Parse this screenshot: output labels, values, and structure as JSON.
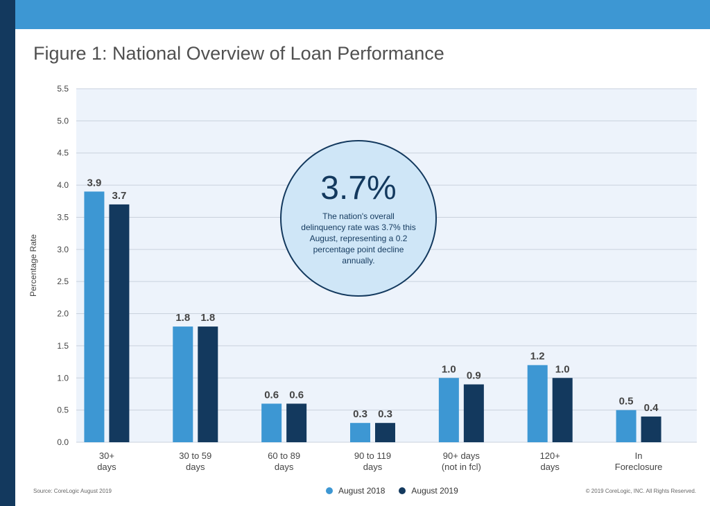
{
  "title": "Figure 1: National Overview of Loan Performance",
  "colors": {
    "series_2018": "#3d97d3",
    "series_2019": "#13395e",
    "plot_bg": "#edf3fb",
    "grid": "#c9d1dc",
    "accent": "#3d97d3",
    "dark": "#13395e"
  },
  "callout": {
    "value": "3.7%",
    "text": "The nation's overall delinquency rate was 3.7% this August, representing a 0.2 percentage point decline annually."
  },
  "footer": {
    "source": "Source: CoreLogic August 2019",
    "copyright": "© 2019 CoreLogic, INC. All Rights Reserved."
  },
  "chart_data": {
    "type": "bar",
    "title": "Figure 1: National Overview of Loan Performance",
    "xlabel": "",
    "ylabel": "Percentage Rate",
    "ylim": [
      0,
      5.5
    ],
    "yticks": [
      "0.0",
      "0.5",
      "1.0",
      "1.5",
      "2.0",
      "2.5",
      "3.0",
      "3.5",
      "4.0",
      "4.5",
      "5.0",
      "5.5"
    ],
    "grid": true,
    "legend_position": "bottom-center",
    "categories": [
      [
        "30+",
        "days"
      ],
      [
        "30 to 59",
        "days"
      ],
      [
        "60 to 89",
        "days"
      ],
      [
        "90 to 119",
        "days"
      ],
      [
        "90+ days",
        "(not in fcl)"
      ],
      [
        "120+",
        "days"
      ],
      [
        "In",
        "Foreclosure"
      ]
    ],
    "series": [
      {
        "name": "August 2018",
        "color": "#3d97d3",
        "values": [
          3.9,
          1.8,
          0.6,
          0.3,
          1.0,
          1.2,
          0.5
        ],
        "labels": [
          "3.9",
          "1.8",
          "0.6",
          "0.3",
          "1.0",
          "1.2",
          "0.5"
        ]
      },
      {
        "name": "August 2019",
        "color": "#13395e",
        "values": [
          3.7,
          1.8,
          0.6,
          0.3,
          0.9,
          1.0,
          0.4
        ],
        "labels": [
          "3.7",
          "1.8",
          "0.6",
          "0.3",
          "0.9",
          "1.0",
          "0.4"
        ]
      }
    ]
  }
}
